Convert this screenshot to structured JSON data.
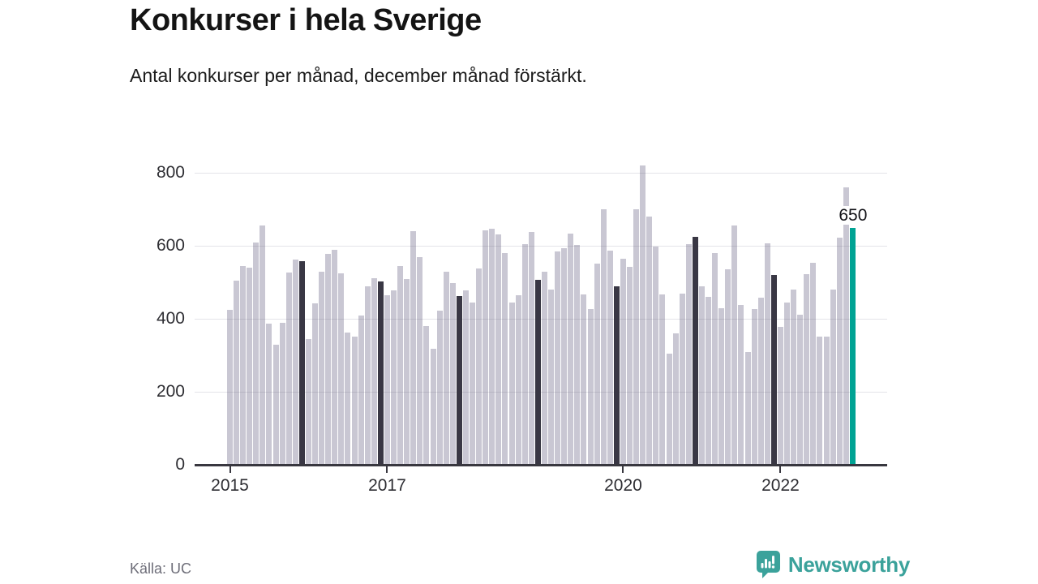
{
  "header": {
    "title": "Konkurser i hela Sverige",
    "subtitle": "Antal konkurser per månad, december månad förstärkt."
  },
  "footer": {
    "source": "Källa: UC",
    "logo_text": "Newsworthy"
  },
  "chart_data": {
    "type": "bar",
    "title": "Konkurser i hela Sverige",
    "subtitle": "Antal konkurser per månad, december månad förstärkt.",
    "xlabel": "",
    "ylabel": "Antal konkurser per månad",
    "ylim": [
      0,
      800
    ],
    "y_ticks": [
      0,
      200,
      400,
      600,
      800
    ],
    "grid": "horizontal",
    "x_tick_labels": [
      "2015",
      "2017",
      "2020",
      "2022"
    ],
    "x_tick_year_offsets": [
      0,
      2,
      5,
      7
    ],
    "annotation": {
      "text": "650",
      "target_month": "2022-12"
    },
    "colors": {
      "bar": "rgba(77,70,110,0.30)",
      "december": "#393744",
      "highlight": "#00a394",
      "gridline": "#e4e4e9",
      "axis": "#38373f",
      "logo_teal": "#3ba29b"
    },
    "series": [
      {
        "name": "Konkurser per månad",
        "years": [
          {
            "year": 2015,
            "values": [
              425,
              505,
              545,
              540,
              610,
              655,
              387,
              330,
              390,
              527,
              562,
              558
            ]
          },
          {
            "year": 2016,
            "values": [
              345,
              443,
              528,
              578,
              588,
              525,
              362,
              352,
              408,
              490,
              512,
              503
            ]
          },
          {
            "year": 2017,
            "values": [
              464,
              478,
              545,
              510,
              640,
              570,
              380,
              318,
              422,
              530,
              498,
              463
            ]
          },
          {
            "year": 2018,
            "values": [
              478,
              445,
              537,
              643,
              647,
              632,
              581,
              444,
              465,
              604,
              637,
              507
            ]
          },
          {
            "year": 2019,
            "values": [
              530,
              481,
              585,
              593,
              633,
              603,
              467,
              426,
              552,
              700,
              586,
              488
            ]
          },
          {
            "year": 2020,
            "values": [
              564,
              542,
              700,
              820,
              680,
              598,
              467,
              305,
              359,
              470,
              604,
              625
            ]
          },
          {
            "year": 2021,
            "values": [
              490,
              460,
              580,
              430,
              535,
              655,
              437,
              310,
              427,
              457,
              607,
              520
            ]
          },
          {
            "year": 2022,
            "values": [
              377,
              444,
              480,
              412,
              522,
              554,
              351,
              351,
              481,
              623,
              760,
              650
            ]
          }
        ]
      }
    ],
    "highlight_rule": "december bars dark; latest month (Dec 2022) teal with value label 650"
  }
}
